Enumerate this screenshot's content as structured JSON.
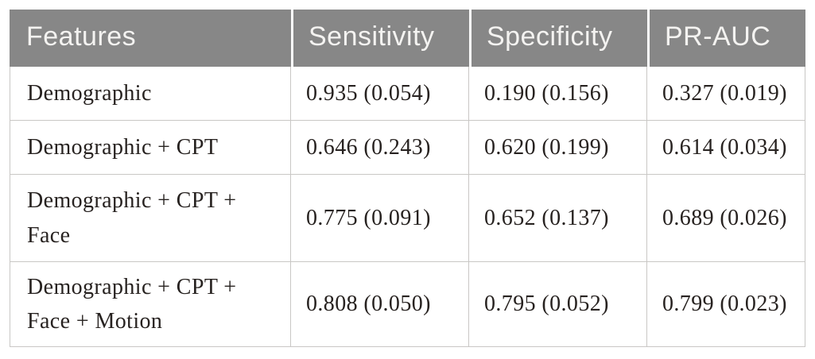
{
  "table": {
    "columns": [
      "Features",
      "Sensitivity",
      "Specificity",
      "PR-AUC"
    ],
    "rows": [
      {
        "features": "Demographic",
        "sensitivity": "0.935 (0.054)",
        "specificity": "0.190 (0.156)",
        "pr_auc": "0.327 (0.019)"
      },
      {
        "features": "Demographic + CPT",
        "sensitivity": "0.646 (0.243)",
        "specificity": "0.620 (0.199)",
        "pr_auc": "0.614 (0.034)"
      },
      {
        "features": "Demographic + CPT + Face",
        "sensitivity": "0.775 (0.091)",
        "specificity": "0.652 (0.137)",
        "pr_auc": "0.689 (0.026)"
      },
      {
        "features": "Demographic + CPT + Face + Motion",
        "sensitivity": "0.808 (0.050)",
        "specificity": "0.795 (0.052)",
        "pr_auc": "0.799 (0.023)"
      }
    ]
  },
  "colors": {
    "header_background": "#878787",
    "header_text": "#f4f3f1",
    "body_text": "#272220",
    "cell_border": "#c9c7c5",
    "header_separator": "#fdfdfd"
  }
}
